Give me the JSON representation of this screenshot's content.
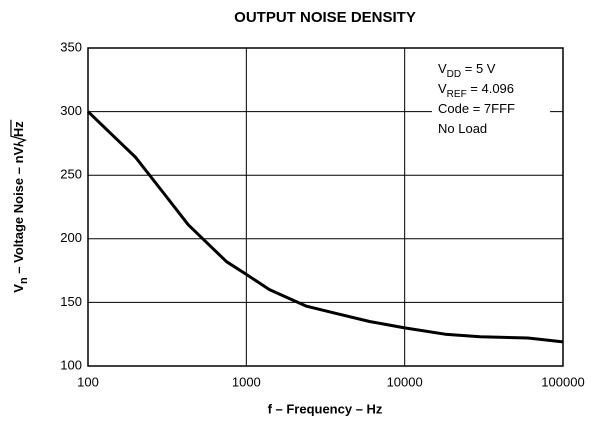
{
  "chart_data": {
    "type": "line",
    "title": "OUTPUT NOISE DENSITY",
    "x_label": "f – Frequency – Hz",
    "y_label": {
      "main": "V",
      "sub": "n",
      "rest": " – Voltage Noise – nV/",
      "root": "Hz"
    },
    "annotations": [
      {
        "main": "V",
        "sub": "DD",
        "rest": " = 5 V"
      },
      {
        "main": "V",
        "sub": "REF",
        "rest": " = 4.096"
      },
      {
        "main": "Code = 7FFF"
      },
      {
        "main": "No Load"
      }
    ],
    "x": [
      100,
      200,
      300,
      430,
      750,
      1000,
      1400,
      2400,
      3500,
      6000,
      10000,
      18000,
      30000,
      60000,
      100000
    ],
    "series": [
      {
        "name": "Vn",
        "color": "#000000",
        "values": [
          300,
          264,
          236,
          211,
          182,
          172,
          160,
          147,
          142,
          135,
          130,
          125,
          123,
          122,
          119
        ]
      }
    ],
    "xlim": [
      100,
      100000
    ],
    "xticks": [
      100,
      1000,
      10000,
      100000
    ],
    "xscale": "log",
    "ylim": [
      100,
      350
    ],
    "yticks": [
      100,
      150,
      200,
      250,
      300,
      350
    ],
    "grid": true
  }
}
